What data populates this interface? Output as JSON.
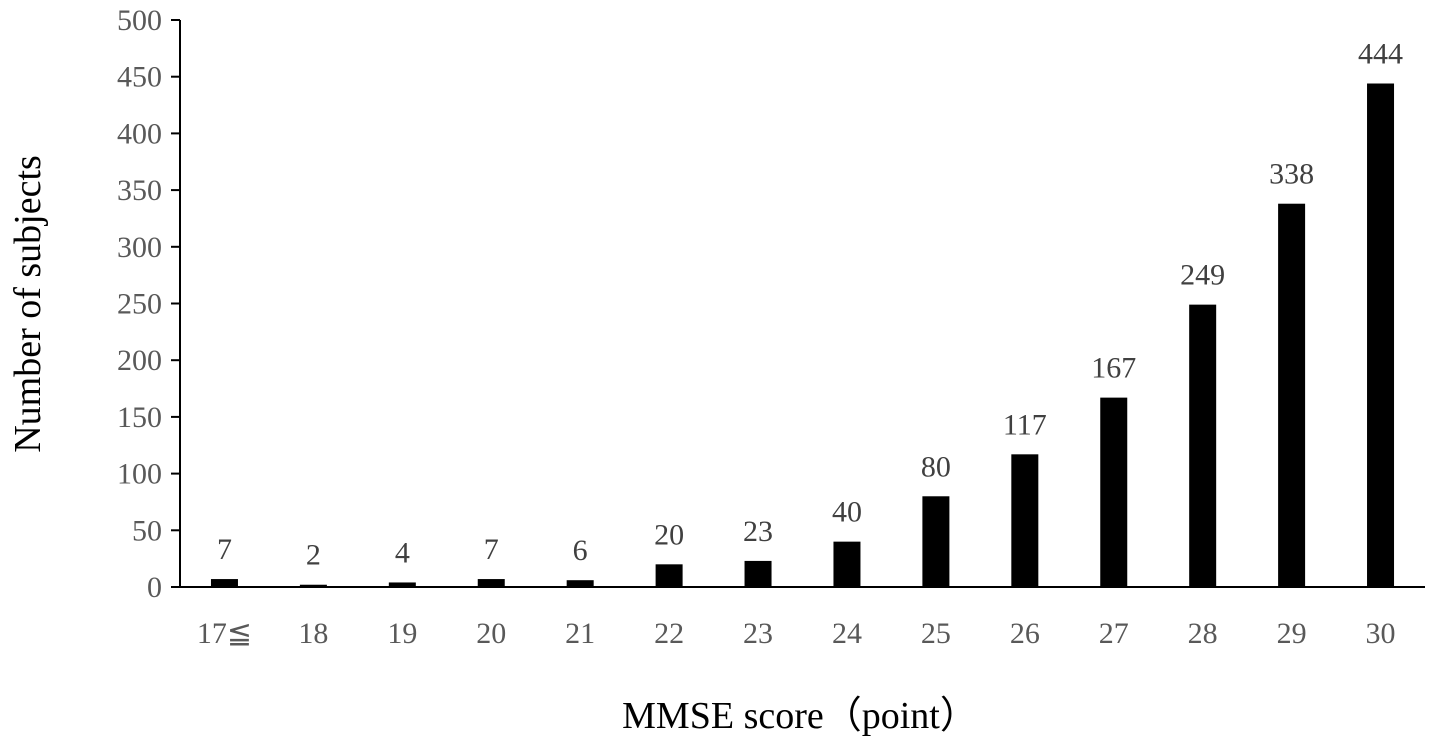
{
  "chart_data": {
    "type": "bar",
    "title": "",
    "xlabel": "MMSE score（point）",
    "ylabel": "Number of subjects",
    "categories": [
      "17≦",
      "18",
      "19",
      "20",
      "21",
      "22",
      "23",
      "24",
      "25",
      "26",
      "27",
      "28",
      "29",
      "30"
    ],
    "values": [
      7,
      2,
      4,
      7,
      6,
      20,
      23,
      40,
      80,
      117,
      167,
      249,
      338,
      444
    ],
    "ylim": [
      0,
      500
    ],
    "yticks": [
      0,
      50,
      100,
      150,
      200,
      250,
      300,
      350,
      400,
      450,
      500
    ],
    "grid": false,
    "legend": "none",
    "bar_color": "#000000"
  }
}
